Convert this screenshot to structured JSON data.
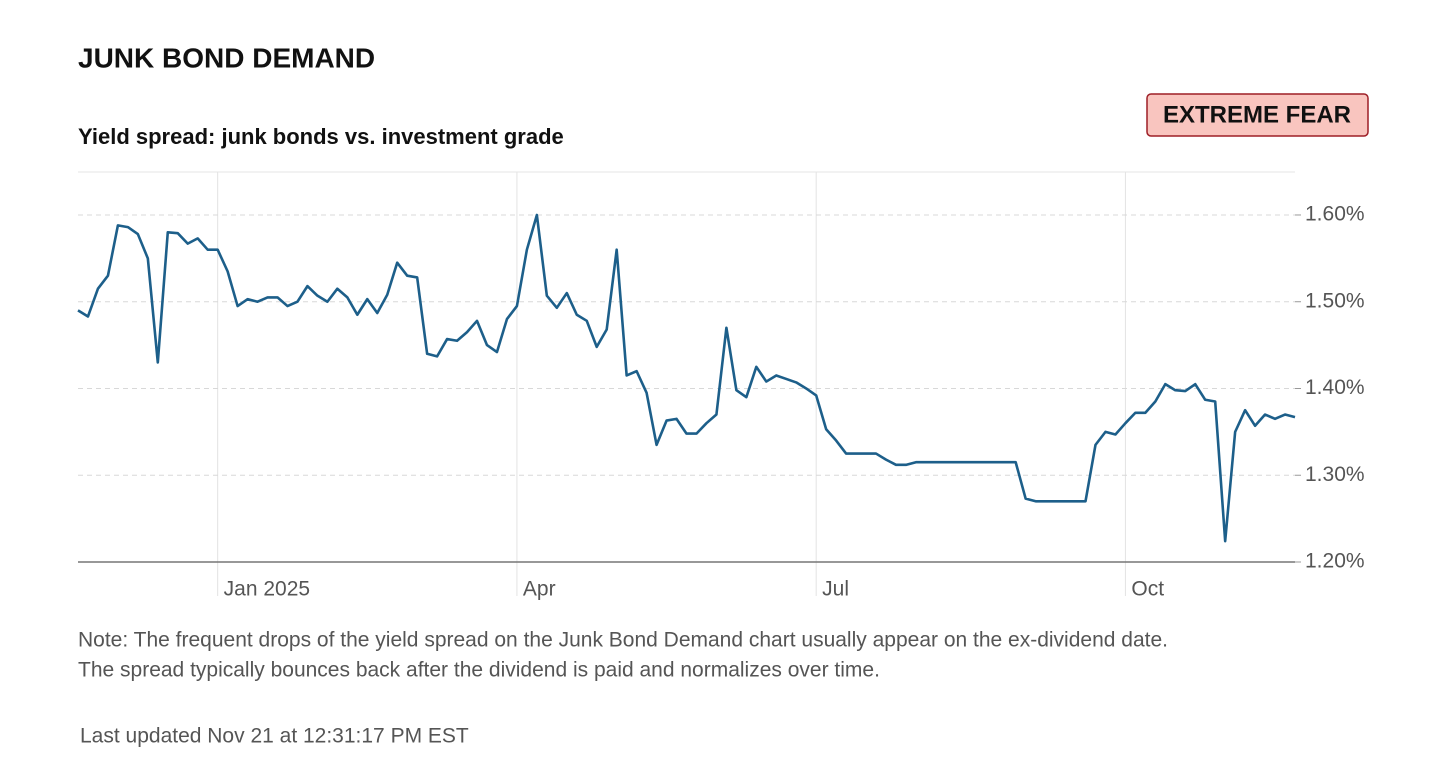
{
  "chart_data": {
    "type": "line",
    "title": "JUNK BOND DEMAND",
    "subtitle": "Yield spread: junk bonds vs. investment grade",
    "badge": "EXTREME FEAR",
    "note": [
      "Note: The frequent drops of the yield spread on the Junk Bond Demand chart usually appear on the ex-dividend date.",
      "The spread typically bounces back after the dividend is paid and normalizes over time."
    ],
    "updated": "Last updated Nov 21 at 12:31:17 PM EST",
    "color": "#1d5f8a",
    "grid": true,
    "ylim": [
      1.2,
      1.65
    ],
    "yticks": [
      {
        "value": 1.2,
        "label": "1.20%"
      },
      {
        "value": 1.3,
        "label": "1.30%"
      },
      {
        "value": 1.4,
        "label": "1.40%"
      },
      {
        "value": 1.5,
        "label": "1.50%"
      },
      {
        "value": 1.6,
        "label": "1.60%"
      }
    ],
    "categories": [
      null,
      null,
      null,
      null,
      null,
      null,
      null,
      null,
      null,
      null,
      null,
      null,
      null,
      null,
      "Jan 2025",
      null,
      null,
      null,
      null,
      null,
      null,
      null,
      null,
      null,
      null,
      null,
      null,
      null,
      null,
      null,
      null,
      null,
      null,
      null,
      null,
      null,
      null,
      null,
      null,
      null,
      null,
      null,
      null,
      null,
      "Apr",
      null,
      null,
      null,
      null,
      null,
      null,
      null,
      null,
      null,
      null,
      null,
      null,
      null,
      null,
      null,
      null,
      null,
      null,
      null,
      null,
      null,
      null,
      null,
      null,
      null,
      null,
      null,
      null,
      null,
      "Jul",
      null,
      null,
      null,
      null,
      null,
      null,
      null,
      null,
      null,
      null,
      null,
      null,
      null,
      null,
      null,
      null,
      null,
      null,
      null,
      null,
      null,
      null,
      null,
      null,
      null,
      null,
      null,
      null,
      null,
      null,
      "Oct",
      null,
      null,
      null,
      null,
      null,
      null,
      null,
      null,
      null,
      null,
      null,
      null,
      null,
      null,
      null,
      null,
      null
    ],
    "values": [
      1.49,
      1.483,
      1.515,
      1.53,
      1.588,
      1.586,
      1.578,
      1.55,
      1.43,
      1.58,
      1.579,
      1.567,
      1.573,
      1.56,
      1.56,
      1.535,
      1.495,
      1.503,
      1.5,
      1.505,
      1.505,
      1.495,
      1.5,
      1.518,
      1.507,
      1.5,
      1.515,
      1.505,
      1.485,
      1.503,
      1.487,
      1.508,
      1.545,
      1.53,
      1.528,
      1.44,
      1.437,
      1.457,
      1.455,
      1.465,
      1.478,
      1.45,
      1.442,
      1.48,
      1.495,
      1.56,
      1.6,
      1.507,
      1.493,
      1.51,
      1.485,
      1.478,
      1.448,
      1.468,
      1.56,
      1.415,
      1.42,
      1.395,
      1.335,
      1.363,
      1.365,
      1.348,
      1.348,
      1.36,
      1.37,
      1.47,
      1.398,
      1.39,
      1.425,
      1.408,
      1.415,
      1.411,
      1.407,
      1.4,
      1.392,
      1.353,
      1.34,
      1.325,
      1.325,
      1.325,
      1.325,
      1.318,
      1.312,
      1.312,
      1.315,
      1.315,
      1.315,
      1.315,
      1.315,
      1.315,
      1.315,
      1.315,
      1.315,
      1.315,
      1.315,
      1.273,
      1.27,
      1.27,
      1.27,
      1.27,
      1.27,
      1.27,
      1.335,
      1.35,
      1.347,
      1.36,
      1.372,
      1.372,
      1.385,
      1.405,
      1.398,
      1.397,
      1.405,
      1.387,
      1.385,
      1.224,
      1.35,
      1.375,
      1.357,
      1.37,
      1.365,
      1.37,
      1.367
    ]
  }
}
